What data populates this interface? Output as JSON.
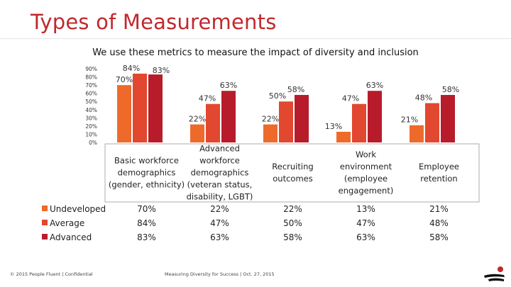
{
  "title": "Types of Measurements",
  "subtitle": "We use these metrics to measure the impact of diversity and inclusion",
  "footer_left": "© 2015 People Fluent | Confidential",
  "footer_center": "Measuring Diversity for Success | Oct. 27, 2015",
  "chart_data": {
    "type": "bar",
    "categories": [
      [
        "Basic workforce",
        "demographics",
        "(gender, ethnicity)"
      ],
      [
        "Advanced",
        "workforce",
        "demographics",
        "(veteran status,",
        "disability, LGBT)"
      ],
      [
        "Recruiting",
        "outcomes"
      ],
      [
        "Work",
        "environment",
        "(employee",
        "engagement)"
      ],
      [
        "Employee",
        "retention"
      ]
    ],
    "series": [
      {
        "name": "Undeveloped",
        "color": "#ee6a2b",
        "values": [
          70,
          22,
          22,
          13,
          21
        ],
        "labels": [
          "70%",
          "22%",
          "22%",
          "13%",
          "21%"
        ],
        "table": [
          "70%",
          "22%",
          "22%",
          "13%",
          "21%"
        ]
      },
      {
        "name": "Average",
        "color": "#e2472f",
        "values": [
          84,
          47,
          50,
          47,
          48
        ],
        "labels": [
          "84%",
          "47%",
          "50%",
          "47%",
          "48%"
        ],
        "table": [
          "84%",
          "47%",
          "50%",
          "47%",
          "48%"
        ]
      },
      {
        "name": "Advanced",
        "color": "#b81c2b",
        "values": [
          83,
          63,
          58,
          63,
          58
        ],
        "labels": [
          "83%",
          "63%",
          "58%",
          "63%",
          "58%"
        ],
        "table": [
          "83%",
          "63%",
          "58%",
          "63%",
          "58%"
        ]
      }
    ],
    "y_ticks": [
      "90%",
      "80%",
      "70%",
      "60%",
      "50%",
      "40%",
      "30%",
      "20%",
      "10%",
      "0%"
    ],
    "ylim": [
      0,
      90
    ],
    "legend": "data table left"
  }
}
